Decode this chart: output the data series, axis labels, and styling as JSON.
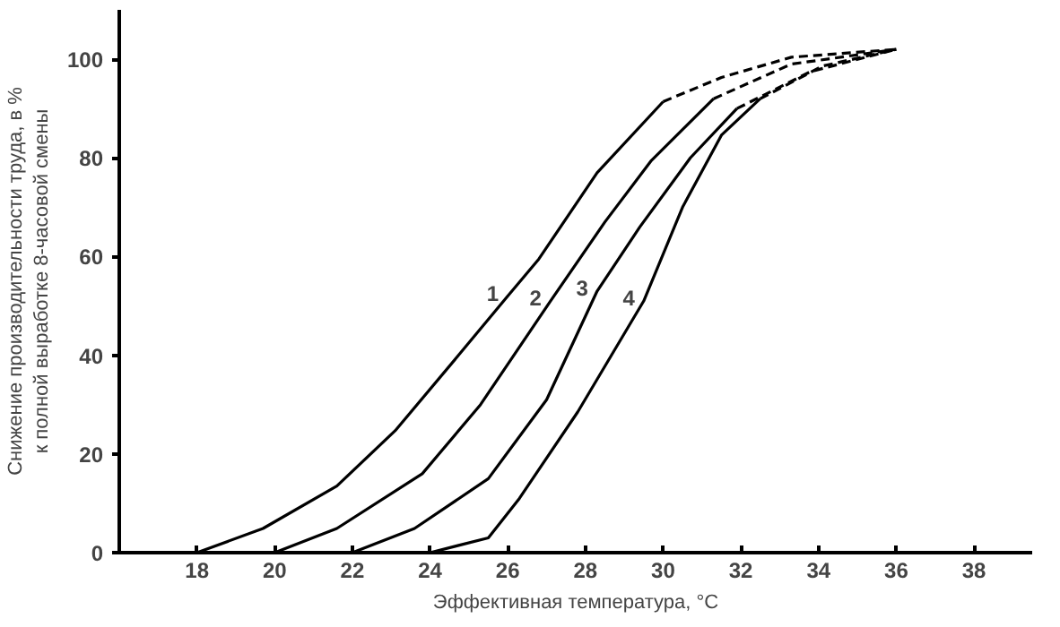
{
  "chart_data": {
    "type": "line",
    "xlabel": "Эффективная температура, °C",
    "ylabel": "Снижение производительности труда, в %\nк полной выработке 8-часовой смены",
    "xlim": [
      16,
      39.5
    ],
    "ylim": [
      0,
      110
    ],
    "xticks": [
      18,
      20,
      22,
      24,
      26,
      28,
      30,
      32,
      34,
      36,
      38
    ],
    "yticks": [
      0,
      20,
      40,
      60,
      80,
      100
    ],
    "grid": false,
    "legend": false,
    "marker": "none",
    "series": [
      {
        "name": "1",
        "color": "#000000",
        "line_style": "solid",
        "x": [
          18,
          19.7,
          21.6,
          23.1,
          24.7,
          26.0,
          26.8,
          28.3,
          30.0
        ],
        "values": [
          0,
          4.9,
          13.5,
          24.7,
          39.7,
          52,
          59.5,
          77,
          91.4
        ]
      },
      {
        "color": "#000000",
        "line_style": "dashed",
        "x": [
          30.0,
          31.5,
          33.3,
          36.0
        ],
        "values": [
          91.4,
          96.3,
          100.4,
          102
        ]
      },
      {
        "name": "2",
        "color": "#000000",
        "line_style": "solid",
        "x": [
          20,
          21.6,
          23.8,
          25.3,
          27.1,
          28.5,
          29.7,
          31.3
        ],
        "values": [
          0,
          4.9,
          16,
          30,
          51,
          67,
          79.5,
          92
        ]
      },
      {
        "color": "#000000",
        "line_style": "dashed",
        "x": [
          31.3,
          33.3,
          36.0
        ],
        "values": [
          92,
          99,
          102
        ]
      },
      {
        "name": "3",
        "color": "#000000",
        "line_style": "solid",
        "x": [
          22,
          23.6,
          25.5,
          27.0,
          28.3,
          29.4,
          30.7,
          31.9
        ],
        "values": [
          0,
          4.9,
          15,
          31,
          53,
          66,
          80,
          90
        ]
      },
      {
        "color": "#000000",
        "line_style": "dashed",
        "x": [
          31.9,
          33.8,
          36.0
        ],
        "values": [
          90,
          97.5,
          102
        ]
      },
      {
        "name": "4",
        "color": "#000000",
        "line_style": "solid",
        "x": [
          24,
          25.5,
          26.3,
          27.8,
          29.5,
          30.5,
          31.5,
          32.5
        ],
        "values": [
          0,
          3,
          11,
          28.5,
          51,
          70,
          84.6,
          92
        ]
      },
      {
        "color": "#000000",
        "line_style": "dashed",
        "x": [
          32.5,
          34.1,
          36.0
        ],
        "values": [
          92,
          98.6,
          102
        ]
      }
    ]
  }
}
